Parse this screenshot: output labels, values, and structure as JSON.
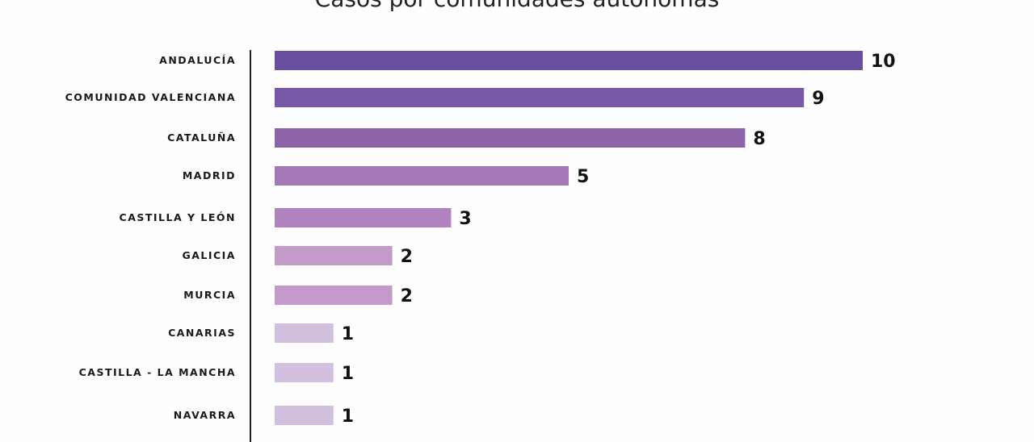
{
  "chart_data": {
    "type": "bar",
    "orientation": "horizontal",
    "title": "Casos por comunidades autónomas",
    "categories": [
      "ANDALUCÍA",
      "COMUNIDAD VALENCIANA",
      "CATALUÑA",
      "MADRID",
      "CASTILLA Y LEÓN",
      "GALICIA",
      "MURCIA",
      "CANARIAS",
      "CASTILLA - LA MANCHA",
      "NAVARRA"
    ],
    "values": [
      10,
      9,
      8,
      5,
      3,
      2,
      2,
      1,
      1,
      1
    ],
    "colors": [
      "#6a4fa1",
      "#7858a6",
      "#8c62a9",
      "#a477b6",
      "#b184c0",
      "#c39aca",
      "#c39aca",
      "#d3c0df",
      "#d3c0df",
      "#d3c0df"
    ],
    "xlim": [
      0,
      10
    ],
    "grid": false,
    "legend": "none"
  }
}
